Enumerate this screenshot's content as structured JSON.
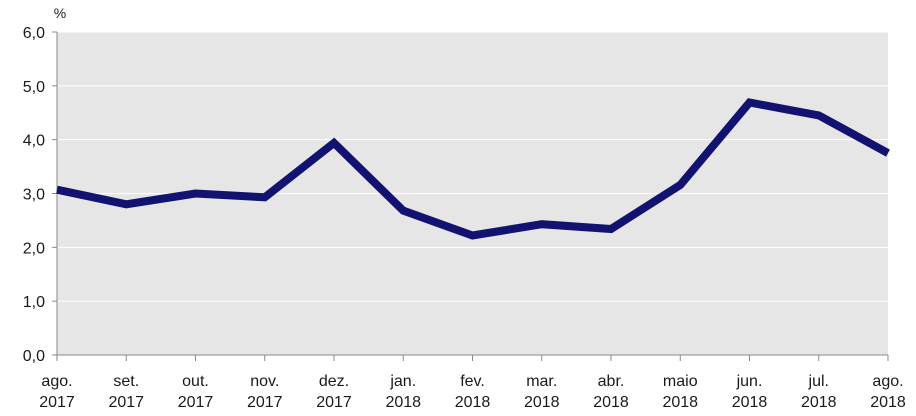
{
  "chart_data": {
    "type": "line",
    "title": "",
    "xlabel": "",
    "ylabel": "",
    "unit": "%",
    "x_month": [
      "ago.",
      "set.",
      "out.",
      "nov.",
      "dez.",
      "jan.",
      "fev.",
      "mar.",
      "abr.",
      "maio",
      "jun.",
      "jul.",
      "ago."
    ],
    "x_year": [
      "2017",
      "2017",
      "2017",
      "2017",
      "2017",
      "2018",
      "2018",
      "2018",
      "2018",
      "2018",
      "2018",
      "2018",
      "2018"
    ],
    "y_ticks": [
      "0,0",
      "1,0",
      "2,0",
      "3,0",
      "4,0",
      "5,0",
      "6,0"
    ],
    "ylim": [
      0,
      6
    ],
    "grid": true,
    "series": [
      {
        "values": [
          3.07,
          2.8,
          3.0,
          2.93,
          3.94,
          2.68,
          2.22,
          2.43,
          2.34,
          3.16,
          4.69,
          4.45,
          3.75
        ]
      }
    ],
    "colors": {
      "plot_background": "#e6e6e6",
      "gridline": "#ffffff",
      "line": "#121270",
      "axis": "#888888"
    }
  }
}
